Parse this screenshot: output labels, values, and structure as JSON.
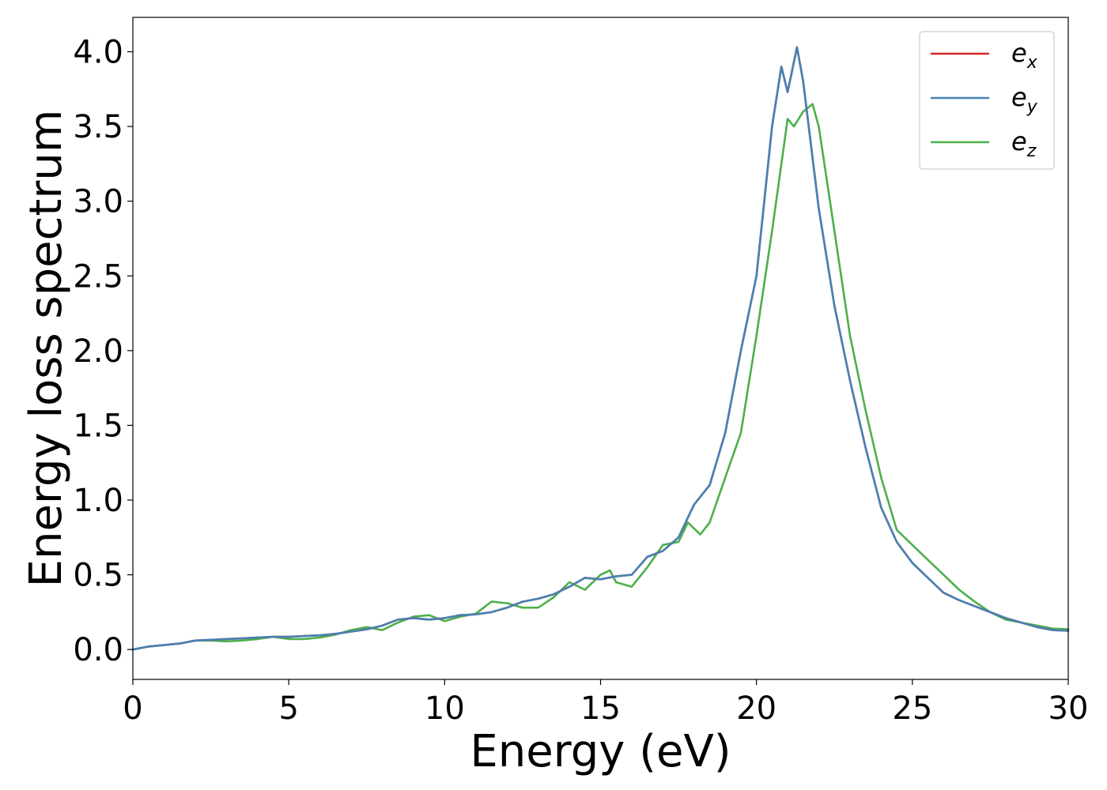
{
  "chart_data": {
    "type": "line",
    "title": "",
    "xlabel": "Energy (eV)",
    "ylabel": "Energy loss spectrum",
    "xlim": [
      0,
      30
    ],
    "ylim": [
      -0.2,
      4.23
    ],
    "x_ticks": [
      0,
      5,
      10,
      15,
      20,
      25,
      30
    ],
    "x_tick_labels": [
      "0",
      "5",
      "10",
      "15",
      "20",
      "25",
      "30"
    ],
    "y_ticks": [
      0.0,
      0.5,
      1.0,
      1.5,
      2.0,
      2.5,
      3.0,
      3.5,
      4.0
    ],
    "y_tick_labels": [
      "0.0",
      "0.5",
      "1.0",
      "1.5",
      "2.0",
      "2.5",
      "3.0",
      "3.5",
      "4.0"
    ],
    "grid": false,
    "legend_position": "top-right",
    "series": [
      {
        "name": "e_x",
        "legend_base": "e",
        "legend_sub": "x",
        "color": "#d62728",
        "points": [
          [
            0,
            0.0
          ],
          [
            0.5,
            0.02
          ],
          [
            1,
            0.03
          ],
          [
            1.5,
            0.04
          ],
          [
            2,
            0.06
          ],
          [
            2.5,
            0.065
          ],
          [
            3,
            0.07
          ],
          [
            3.5,
            0.075
          ],
          [
            4,
            0.08
          ],
          [
            4.5,
            0.085
          ],
          [
            5,
            0.085
          ],
          [
            5.5,
            0.09
          ],
          [
            6,
            0.095
          ],
          [
            6.5,
            0.105
          ],
          [
            7,
            0.12
          ],
          [
            7.5,
            0.135
          ],
          [
            8,
            0.16
          ],
          [
            8.5,
            0.2
          ],
          [
            9,
            0.21
          ],
          [
            9.5,
            0.2
          ],
          [
            10,
            0.21
          ],
          [
            10.5,
            0.23
          ],
          [
            11,
            0.235
          ],
          [
            11.5,
            0.25
          ],
          [
            12,
            0.28
          ],
          [
            12.5,
            0.32
          ],
          [
            13,
            0.34
          ],
          [
            13.5,
            0.37
          ],
          [
            14,
            0.42
          ],
          [
            14.5,
            0.48
          ],
          [
            15,
            0.47
          ],
          [
            15.5,
            0.49
          ],
          [
            16,
            0.5
          ],
          [
            16.5,
            0.62
          ],
          [
            17,
            0.66
          ],
          [
            17.5,
            0.75
          ],
          [
            18,
            0.97
          ],
          [
            18.5,
            1.1
          ],
          [
            19,
            1.45
          ],
          [
            19.5,
            2.0
          ],
          [
            20,
            2.5
          ],
          [
            20.5,
            3.5
          ],
          [
            20.8,
            3.9
          ],
          [
            21.0,
            3.73
          ],
          [
            21.3,
            4.03
          ],
          [
            21.5,
            3.8
          ],
          [
            22,
            2.95
          ],
          [
            22.5,
            2.3
          ],
          [
            23,
            1.8
          ],
          [
            23.5,
            1.35
          ],
          [
            24,
            0.95
          ],
          [
            24.5,
            0.72
          ],
          [
            25,
            0.58
          ],
          [
            25.5,
            0.48
          ],
          [
            26,
            0.38
          ],
          [
            26.5,
            0.33
          ],
          [
            27,
            0.29
          ],
          [
            27.5,
            0.25
          ],
          [
            28,
            0.21
          ],
          [
            28.5,
            0.18
          ],
          [
            29,
            0.15
          ],
          [
            29.5,
            0.13
          ],
          [
            30,
            0.125
          ]
        ]
      },
      {
        "name": "e_y",
        "legend_base": "e",
        "legend_sub": "y",
        "color": "#4682b4",
        "points": [
          [
            0,
            0.0
          ],
          [
            0.5,
            0.02
          ],
          [
            1,
            0.03
          ],
          [
            1.5,
            0.04
          ],
          [
            2,
            0.06
          ],
          [
            2.5,
            0.065
          ],
          [
            3,
            0.07
          ],
          [
            3.5,
            0.075
          ],
          [
            4,
            0.08
          ],
          [
            4.5,
            0.085
          ],
          [
            5,
            0.085
          ],
          [
            5.5,
            0.09
          ],
          [
            6,
            0.095
          ],
          [
            6.5,
            0.105
          ],
          [
            7,
            0.12
          ],
          [
            7.5,
            0.135
          ],
          [
            8,
            0.16
          ],
          [
            8.5,
            0.2
          ],
          [
            9,
            0.21
          ],
          [
            9.5,
            0.2
          ],
          [
            10,
            0.21
          ],
          [
            10.5,
            0.23
          ],
          [
            11,
            0.235
          ],
          [
            11.5,
            0.25
          ],
          [
            12,
            0.28
          ],
          [
            12.5,
            0.32
          ],
          [
            13,
            0.34
          ],
          [
            13.5,
            0.37
          ],
          [
            14,
            0.42
          ],
          [
            14.5,
            0.48
          ],
          [
            15,
            0.47
          ],
          [
            15.5,
            0.49
          ],
          [
            16,
            0.5
          ],
          [
            16.5,
            0.62
          ],
          [
            17,
            0.66
          ],
          [
            17.5,
            0.75
          ],
          [
            18,
            0.97
          ],
          [
            18.5,
            1.1
          ],
          [
            19,
            1.45
          ],
          [
            19.5,
            2.0
          ],
          [
            20,
            2.5
          ],
          [
            20.5,
            3.5
          ],
          [
            20.8,
            3.9
          ],
          [
            21.0,
            3.73
          ],
          [
            21.3,
            4.03
          ],
          [
            21.5,
            3.8
          ],
          [
            22,
            2.95
          ],
          [
            22.5,
            2.3
          ],
          [
            23,
            1.8
          ],
          [
            23.5,
            1.35
          ],
          [
            24,
            0.95
          ],
          [
            24.5,
            0.72
          ],
          [
            25,
            0.58
          ],
          [
            25.5,
            0.48
          ],
          [
            26,
            0.38
          ],
          [
            26.5,
            0.33
          ],
          [
            27,
            0.29
          ],
          [
            27.5,
            0.25
          ],
          [
            28,
            0.21
          ],
          [
            28.5,
            0.18
          ],
          [
            29,
            0.15
          ],
          [
            29.5,
            0.13
          ],
          [
            30,
            0.125
          ]
        ]
      },
      {
        "name": "e_z",
        "legend_base": "e",
        "legend_sub": "z",
        "color": "#4daf4a",
        "points": [
          [
            0,
            0.0
          ],
          [
            0.5,
            0.02
          ],
          [
            1,
            0.03
          ],
          [
            1.5,
            0.04
          ],
          [
            2,
            0.06
          ],
          [
            2.5,
            0.06
          ],
          [
            3,
            0.055
          ],
          [
            3.5,
            0.06
          ],
          [
            4,
            0.07
          ],
          [
            4.5,
            0.085
          ],
          [
            5,
            0.07
          ],
          [
            5.5,
            0.07
          ],
          [
            6,
            0.08
          ],
          [
            6.5,
            0.1
          ],
          [
            7,
            0.13
          ],
          [
            7.5,
            0.15
          ],
          [
            8,
            0.13
          ],
          [
            8.5,
            0.18
          ],
          [
            9,
            0.22
          ],
          [
            9.5,
            0.23
          ],
          [
            10,
            0.19
          ],
          [
            10.5,
            0.22
          ],
          [
            11,
            0.24
          ],
          [
            11.5,
            0.32
          ],
          [
            12,
            0.31
          ],
          [
            12.5,
            0.28
          ],
          [
            13,
            0.28
          ],
          [
            13.5,
            0.35
          ],
          [
            14,
            0.45
          ],
          [
            14.5,
            0.4
          ],
          [
            15,
            0.5
          ],
          [
            15.3,
            0.53
          ],
          [
            15.5,
            0.45
          ],
          [
            16,
            0.42
          ],
          [
            16.5,
            0.55
          ],
          [
            17,
            0.7
          ],
          [
            17.5,
            0.72
          ],
          [
            17.8,
            0.85
          ],
          [
            18.2,
            0.77
          ],
          [
            18.5,
            0.85
          ],
          [
            19,
            1.15
          ],
          [
            19.5,
            1.45
          ],
          [
            20,
            2.1
          ],
          [
            20.5,
            2.8
          ],
          [
            21,
            3.55
          ],
          [
            21.2,
            3.5
          ],
          [
            21.5,
            3.6
          ],
          [
            21.8,
            3.65
          ],
          [
            22,
            3.5
          ],
          [
            22.5,
            2.8
          ],
          [
            23,
            2.1
          ],
          [
            23.5,
            1.6
          ],
          [
            24,
            1.15
          ],
          [
            24.5,
            0.8
          ],
          [
            25,
            0.7
          ],
          [
            25.5,
            0.6
          ],
          [
            26,
            0.5
          ],
          [
            26.5,
            0.4
          ],
          [
            27,
            0.32
          ],
          [
            27.5,
            0.25
          ],
          [
            28,
            0.2
          ],
          [
            28.5,
            0.18
          ],
          [
            29,
            0.16
          ],
          [
            29.5,
            0.14
          ],
          [
            30,
            0.135
          ]
        ]
      }
    ]
  }
}
